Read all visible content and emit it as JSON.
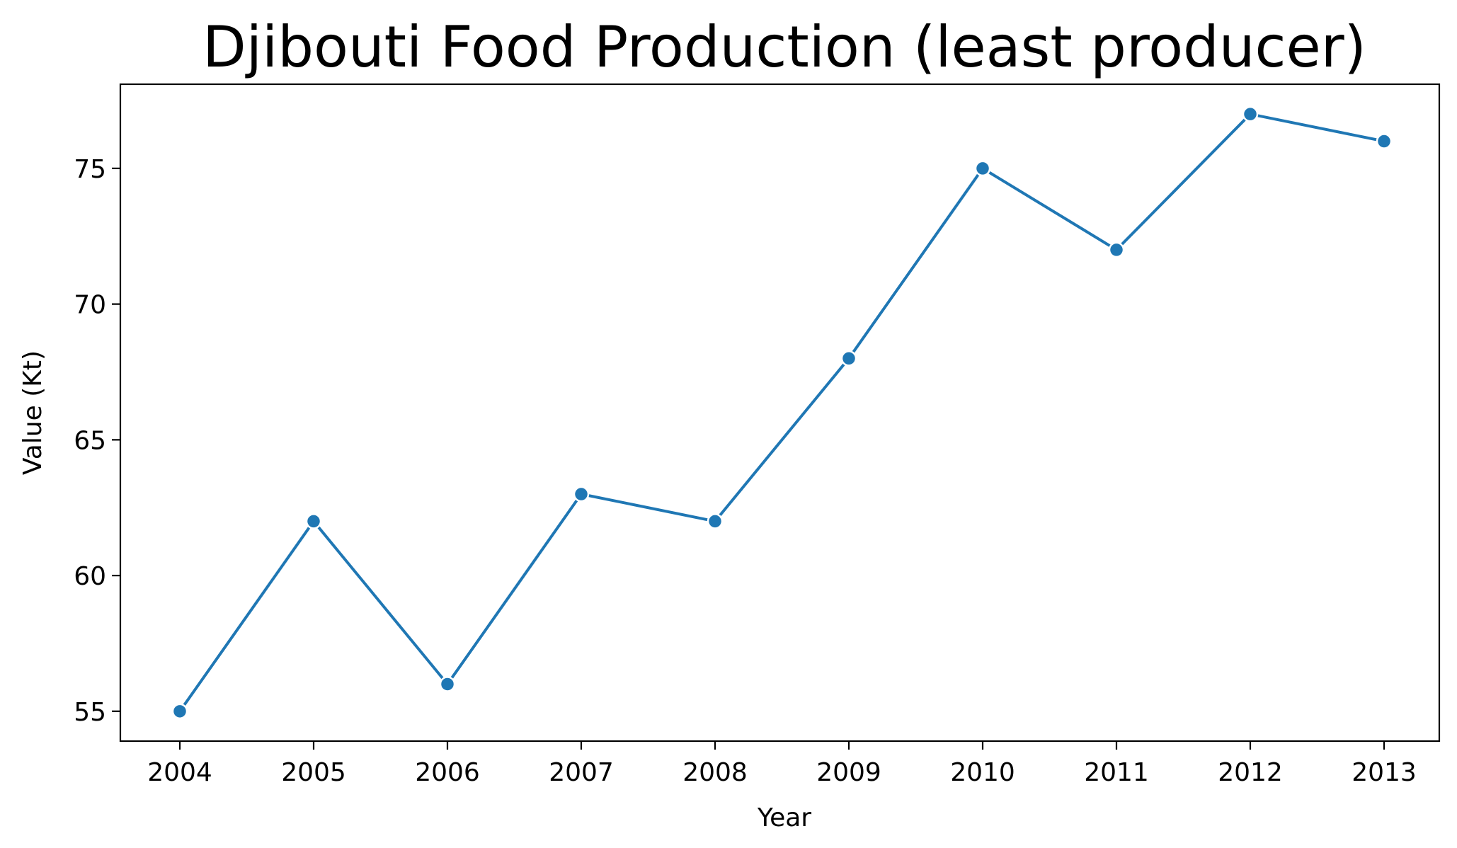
{
  "chart_data": {
    "type": "line",
    "title": "Djibouti Food Production (least producer)",
    "xlabel": "Year",
    "ylabel": "Value (Kt)",
    "x": [
      "2004",
      "2005",
      "2006",
      "2007",
      "2008",
      "2009",
      "2010",
      "2011",
      "2012",
      "2013"
    ],
    "series": [
      {
        "values": [
          55,
          62,
          56,
          63,
          62,
          68,
          75,
          72,
          77,
          76
        ]
      }
    ],
    "y_ticks": [
      "55",
      "60",
      "65",
      "70",
      "75"
    ],
    "ylim": [
      53.9,
      78.1
    ],
    "grid": false,
    "markers": true,
    "colors": {
      "series": "#1f77b4",
      "marker_edge": "#ffffff"
    }
  }
}
